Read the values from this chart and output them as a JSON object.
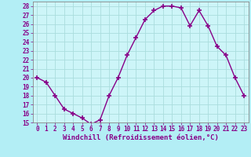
{
  "x": [
    0,
    1,
    2,
    3,
    4,
    5,
    6,
    7,
    8,
    9,
    10,
    11,
    12,
    13,
    14,
    15,
    16,
    17,
    18,
    19,
    20,
    21,
    22,
    23
  ],
  "y": [
    20,
    19.5,
    18,
    16.5,
    16,
    15.5,
    14.8,
    15.3,
    18,
    20,
    22.5,
    24.5,
    26.5,
    27.5,
    28,
    28,
    27.8,
    25.8,
    27.5,
    25.8,
    23.5,
    22.5,
    20,
    18
  ],
  "line_color": "#880088",
  "marker": "+",
  "marker_size": 5,
  "marker_lw": 1.2,
  "bg_color": "#b3eef5",
  "plot_bg_color": "#cdf5f8",
  "grid_color": "#aadddd",
  "xlabel": "Windchill (Refroidissement éolien,°C)",
  "ylabel": "",
  "title": "",
  "ylim": [
    15,
    28.5
  ],
  "xlim": [
    -0.5,
    23.5
  ],
  "yticks": [
    15,
    16,
    17,
    18,
    19,
    20,
    21,
    22,
    23,
    24,
    25,
    26,
    27,
    28
  ],
  "xticks": [
    0,
    1,
    2,
    3,
    4,
    5,
    6,
    7,
    8,
    9,
    10,
    11,
    12,
    13,
    14,
    15,
    16,
    17,
    18,
    19,
    20,
    21,
    22,
    23
  ],
  "tick_color": "#880088",
  "tick_fontsize": 5.5,
  "xlabel_fontsize": 6.5,
  "spine_color": "#888888",
  "linewidth": 1.0
}
